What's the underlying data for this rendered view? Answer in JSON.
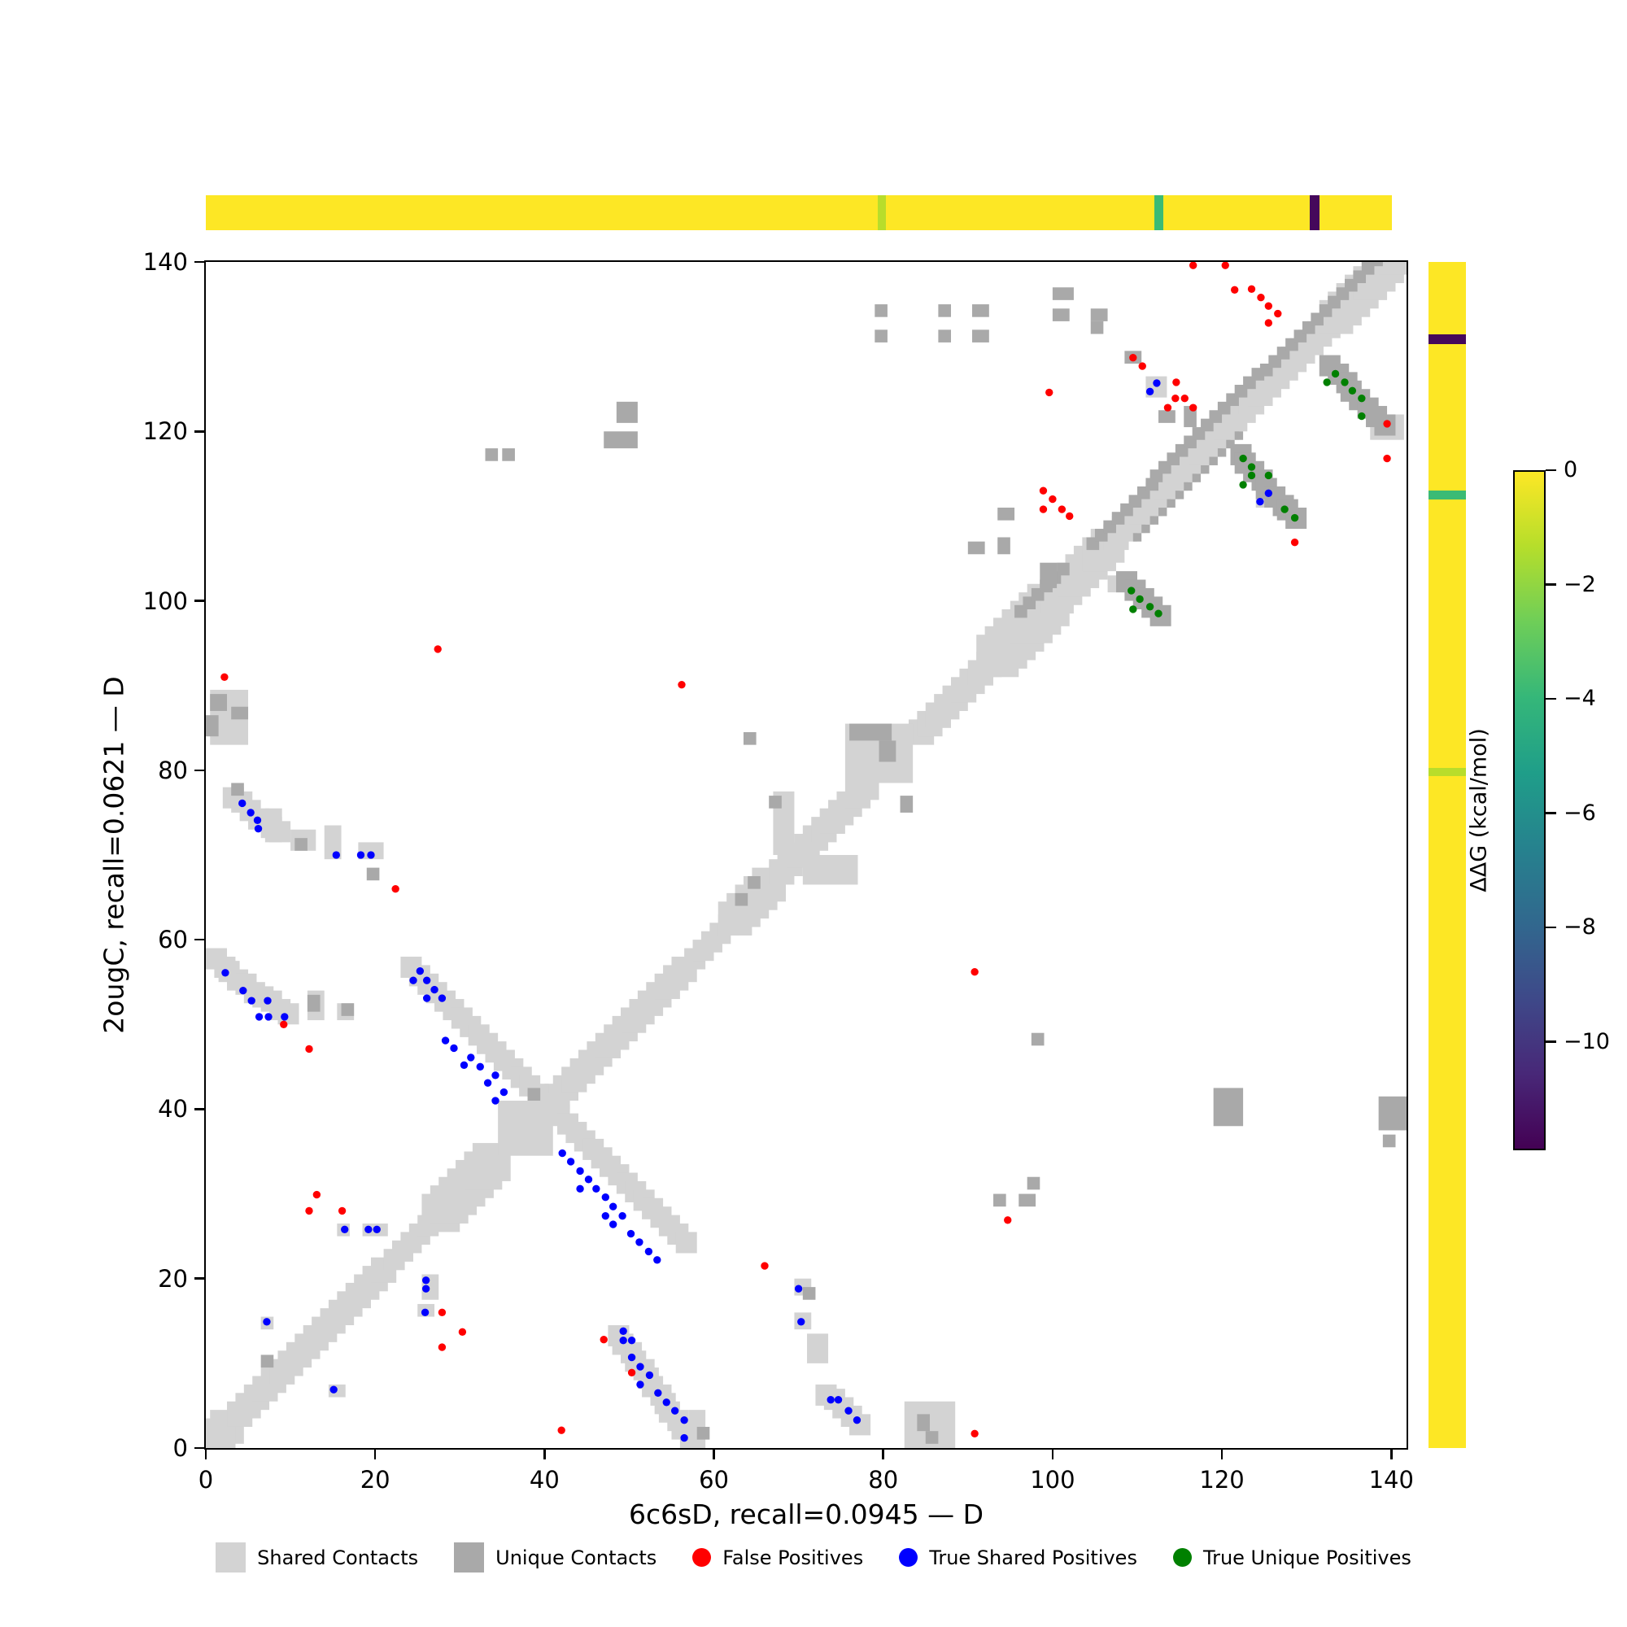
{
  "figure": {
    "background": "#ffffff"
  },
  "axes": {
    "xlabel": "6c6sD, recall=0.0945 — D",
    "ylabel": "2ougC, recall=0.0621 — D",
    "xtick_labels": [
      "0",
      "20",
      "40",
      "60",
      "80",
      "100",
      "120",
      "140"
    ],
    "xtick_values": [
      0,
      20,
      40,
      60,
      80,
      100,
      120,
      140
    ],
    "ytick_labels": [
      "0",
      "20",
      "40",
      "60",
      "80",
      "100",
      "120",
      "140"
    ],
    "ytick_values": [
      0,
      20,
      40,
      60,
      80,
      100,
      120,
      140
    ],
    "xlim": [
      0,
      141.8
    ],
    "ylim": [
      0,
      140
    ]
  },
  "legend": {
    "items": [
      {
        "label": "Shared Contacts",
        "shape": "square",
        "color": "#d3d3d3"
      },
      {
        "label": "Unique Contacts",
        "shape": "square",
        "color": "#a9a9a9"
      },
      {
        "label": "False Positives",
        "shape": "circle",
        "color": "#ff0000"
      },
      {
        "label": "True Shared Positives",
        "shape": "circle",
        "color": "#0000ff"
      },
      {
        "label": "True Unique Positives",
        "shape": "circle",
        "color": "#008000"
      }
    ]
  },
  "colorbar": {
    "label": "ΔΔG (kcal/mol)",
    "vmax": 0,
    "vmin": -11.9,
    "ticks": [
      {
        "label": "0",
        "value": 0
      },
      {
        "label": "−2",
        "value": -2
      },
      {
        "label": "−4",
        "value": -4
      },
      {
        "label": "−6",
        "value": -6
      },
      {
        "label": "−8",
        "value": -8
      },
      {
        "label": "−10",
        "value": -10
      }
    ],
    "gradient": [
      "#fde725",
      "#b5de2b",
      "#6ece58",
      "#35b779",
      "#1f9e89",
      "#26828e",
      "#31688e",
      "#3e4989",
      "#482878",
      "#440154"
    ]
  },
  "strips": {
    "base_color": "#fde725",
    "length": 140,
    "marks": [
      {
        "residue": 79.8,
        "width": 1.0,
        "color": "#b8dd2b",
        "ddg": -1.0
      },
      {
        "residue": 112.5,
        "width": 1.1,
        "color": "#3bbb75",
        "ddg": -4.0
      },
      {
        "residue": 130.9,
        "width": 1.2,
        "color": "#45085b",
        "ddg": -11.5
      }
    ]
  },
  "chart_data": {
    "type": "contact-map-comparison",
    "x_protein": {
      "id": "6c6sD",
      "recall": 0.0945,
      "chain": "D"
    },
    "y_protein": {
      "id": "2ougC",
      "recall": 0.0621,
      "chain": "D"
    },
    "cell_colors": {
      "shared": "#d3d3d3",
      "unique": "#a9a9a9"
    },
    "dot_colors": {
      "false_positive": "#ff0000",
      "true_shared": "#0000ff",
      "true_unique": "#008000"
    },
    "dot_radius": 0.45,
    "diagonal_runs": [
      [
        0,
        3.5,
        2.1
      ],
      [
        3.5,
        22,
        1.6
      ],
      [
        22,
        27,
        1.3
      ],
      [
        27,
        34,
        2.2
      ],
      [
        41,
        57,
        1.6
      ],
      [
        57,
        62,
        1.2
      ],
      [
        62,
        67.5,
        1.9
      ],
      [
        67.5,
        79,
        1.5
      ],
      [
        84,
        93,
        1.5
      ],
      [
        93,
        100,
        2.4
      ],
      [
        100,
        107,
        2.1
      ],
      [
        107,
        133,
        1.5
      ],
      [
        133,
        141.8,
        2.0
      ]
    ],
    "shared_segments": [
      [
        1.0,
        57.6,
        9.6,
        51.0,
        2.4
      ],
      [
        24.0,
        56.8,
        56.8,
        24.0,
        2.3
      ],
      [
        48.8,
        13.4,
        57.0,
        1.0,
        2.5
      ],
      [
        3.4,
        77.0,
        8.6,
        72.6,
        2.6
      ],
      [
        73.5,
        6.5,
        77.3,
        2.9,
        2.6
      ]
    ],
    "unique_segments": [
      [
        132.8,
        127.6,
        139.2,
        120.8,
        2.6
      ],
      [
        122.2,
        117.2,
        128.8,
        109.6,
        2.6
      ],
      [
        108.8,
        102.2,
        112.8,
        98.4,
        2.4
      ],
      [
        104.5,
        106.7,
        139.0,
        141.2,
        1.3
      ],
      [
        96.0,
        98.4,
        101.0,
        103.4,
        1.3
      ],
      [
        110.0,
        107.8,
        122.0,
        119.8,
        1.2
      ]
    ],
    "shared_blobs": [
      [
        0,
        0,
        3.6,
        2.6
      ],
      [
        34.5,
        34.5,
        6.7,
        6.7
      ],
      [
        75.6,
        78.5,
        8.2,
        7.0
      ],
      [
        0.5,
        83.2,
        4.6,
        6.3
      ],
      [
        82.6,
        0.2,
        5.8,
        5.7
      ],
      [
        66.8,
        69.8,
        2.6,
        7.4
      ],
      [
        70.3,
        66.3,
        6.3,
        3.5
      ],
      [
        14.2,
        69.6,
        1.9,
        4.0
      ],
      [
        17.8,
        69.3,
        3.1,
        1.8
      ],
      [
        10.2,
        70.4,
        3.1,
        2.7
      ],
      [
        6.9,
        71.5,
        2.1,
        4.0
      ],
      [
        69.3,
        18.1,
        1.8,
        1.8
      ],
      [
        69.5,
        14.2,
        1.9,
        1.8
      ],
      [
        15.6,
        25.2,
        1.7,
        1.7
      ],
      [
        18.5,
        25.2,
        2.8,
        1.7
      ],
      [
        25.4,
        17.7,
        1.8,
        3.0
      ],
      [
        25.2,
        15.4,
        1.8,
        1.7
      ],
      [
        6.4,
        14.2,
        1.7,
        1.7
      ],
      [
        14.3,
        6.2,
        1.8,
        1.7
      ],
      [
        57.2,
        0.1,
        2.0,
        4.3
      ],
      [
        12.0,
        50.4,
        2.2,
        3.4
      ],
      [
        15.5,
        50.7,
        2.2,
        2.2
      ],
      [
        106.6,
        100.9,
        1.8,
        1.8
      ],
      [
        124.2,
        110.8,
        2.7,
        2.7
      ],
      [
        137.4,
        118.9,
        3.9,
        3.2
      ],
      [
        111.1,
        124.1,
        2.3,
        2.5
      ],
      [
        70.8,
        10.2,
        2.5,
        3.3
      ]
    ],
    "unique_blobs": [
      [
        0.6,
        87.0,
        2.2,
        2.2
      ],
      [
        0.2,
        83.8,
        1.6,
        2.6
      ],
      [
        2.8,
        85.8,
        2.2,
        1.6
      ],
      [
        3.1,
        76.8,
        1.4,
        1.4
      ],
      [
        10.3,
        70.7,
        1.4,
        1.6
      ],
      [
        19.0,
        66.9,
        1.5,
        1.5
      ],
      [
        12.1,
        51.4,
        1.4,
        1.9
      ],
      [
        15.8,
        51.2,
        1.6,
        1.6
      ],
      [
        6.7,
        9.4,
        1.3,
        1.3
      ],
      [
        38.1,
        40.8,
        1.4,
        1.4
      ],
      [
        33.0,
        116.3,
        1.6,
        1.6
      ],
      [
        35.2,
        116.3,
        1.4,
        1.6
      ],
      [
        46.8,
        118.0,
        4.0,
        2.2
      ],
      [
        48.3,
        120.8,
        2.6,
        2.3
      ],
      [
        63.6,
        83.0,
        1.5,
        1.5
      ],
      [
        66.7,
        75.6,
        1.4,
        1.4
      ],
      [
        62.3,
        64.2,
        1.4,
        1.4
      ],
      [
        64.0,
        65.8,
        1.4,
        1.4
      ],
      [
        57.9,
        0.8,
        1.4,
        1.4
      ],
      [
        83.8,
        2.2,
        1.6,
        1.9
      ],
      [
        85.2,
        0.3,
        1.6,
        1.5
      ],
      [
        70.4,
        17.5,
        1.6,
        1.3
      ],
      [
        97.3,
        47.3,
        1.6,
        1.6
      ],
      [
        119.2,
        38.0,
        3.4,
        4.6
      ],
      [
        138.3,
        37.3,
        3.5,
        4.2
      ],
      [
        139.2,
        35.6,
        1.4,
        1.4
      ],
      [
        96.9,
        30.4,
        1.6,
        1.6
      ],
      [
        93.2,
        28.3,
        1.6,
        1.6
      ],
      [
        96.0,
        28.3,
        2.2,
        1.6
      ],
      [
        75.8,
        83.6,
        5.2,
        1.9
      ],
      [
        79.4,
        81.0,
        2.2,
        2.5
      ],
      [
        82.2,
        75.2,
        1.5,
        2.1
      ],
      [
        78.8,
        133.3,
        1.6,
        1.4
      ],
      [
        78.8,
        130.3,
        1.6,
        1.4
      ],
      [
        86.4,
        133.3,
        1.6,
        1.6
      ],
      [
        86.4,
        130.4,
        1.6,
        1.6
      ],
      [
        90.3,
        133.4,
        1.9,
        1.4
      ],
      [
        90.3,
        130.6,
        1.9,
        1.4
      ],
      [
        100.2,
        135.5,
        2.3,
        1.6
      ],
      [
        100.2,
        133.0,
        1.9,
        1.4
      ],
      [
        104.5,
        133.2,
        1.9,
        1.4
      ],
      [
        104.5,
        131.3,
        1.4,
        1.4
      ],
      [
        108.3,
        128.2,
        1.9,
        1.4
      ],
      [
        93.6,
        109.6,
        2.2,
        1.4
      ],
      [
        93.6,
        105.6,
        1.4,
        2.2
      ],
      [
        89.8,
        105.4,
        2.2,
        1.4
      ],
      [
        98.6,
        101.3,
        1.9,
        3.1
      ],
      [
        112.5,
        121.2,
        1.9,
        1.4
      ],
      [
        115.3,
        120.3,
        1.4,
        2.3
      ]
    ],
    "false_positives": [
      [
        2.2,
        91.0
      ],
      [
        9.2,
        50.0
      ],
      [
        12.2,
        47.1
      ],
      [
        13.1,
        29.9
      ],
      [
        12.2,
        28.0
      ],
      [
        16.1,
        28.0
      ],
      [
        22.4,
        66.0
      ],
      [
        27.4,
        94.3
      ],
      [
        27.9,
        16.0
      ],
      [
        27.9,
        11.9
      ],
      [
        30.3,
        13.7
      ],
      [
        42.0,
        2.1
      ],
      [
        47.0,
        12.8
      ],
      [
        50.3,
        8.9
      ],
      [
        56.2,
        90.1
      ],
      [
        66.0,
        21.5
      ],
      [
        90.8,
        56.2
      ],
      [
        90.8,
        1.7
      ],
      [
        94.7,
        26.9
      ],
      [
        99.6,
        124.6
      ],
      [
        98.9,
        113.0
      ],
      [
        100.0,
        112.0
      ],
      [
        98.9,
        110.8
      ],
      [
        101.1,
        110.8
      ],
      [
        102.0,
        110.0
      ],
      [
        109.5,
        128.7
      ],
      [
        110.6,
        127.7
      ],
      [
        116.6,
        139.6
      ],
      [
        120.4,
        139.6
      ],
      [
        121.5,
        136.7
      ],
      [
        123.5,
        136.8
      ],
      [
        124.6,
        135.8
      ],
      [
        125.5,
        134.8
      ],
      [
        126.6,
        133.9
      ],
      [
        125.5,
        132.8
      ],
      [
        114.6,
        125.8
      ],
      [
        114.5,
        123.9
      ],
      [
        115.6,
        123.9
      ],
      [
        113.6,
        122.8
      ],
      [
        116.6,
        122.8
      ],
      [
        128.6,
        106.9
      ],
      [
        139.5,
        120.9
      ],
      [
        139.5,
        116.8
      ]
    ],
    "true_shared_positives": [
      [
        2.3,
        56.1
      ],
      [
        4.4,
        54.0
      ],
      [
        5.4,
        52.8
      ],
      [
        7.3,
        52.8
      ],
      [
        6.3,
        50.9
      ],
      [
        7.4,
        50.9
      ],
      [
        9.3,
        50.9
      ],
      [
        4.3,
        76.1
      ],
      [
        5.3,
        75.0
      ],
      [
        6.1,
        74.1
      ],
      [
        6.2,
        73.1
      ],
      [
        15.4,
        70.0
      ],
      [
        18.3,
        70.0
      ],
      [
        19.5,
        70.0
      ],
      [
        7.2,
        14.9
      ],
      [
        15.1,
        6.9
      ],
      [
        16.4,
        25.8
      ],
      [
        19.2,
        25.8
      ],
      [
        20.2,
        25.8
      ],
      [
        26.0,
        19.8
      ],
      [
        26.0,
        18.8
      ],
      [
        25.9,
        16.0
      ],
      [
        25.3,
        56.3
      ],
      [
        24.5,
        55.2
      ],
      [
        26.1,
        55.2
      ],
      [
        27.0,
        54.1
      ],
      [
        26.1,
        53.1
      ],
      [
        27.9,
        53.1
      ],
      [
        28.3,
        48.1
      ],
      [
        29.3,
        47.2
      ],
      [
        31.3,
        46.1
      ],
      [
        30.5,
        45.2
      ],
      [
        32.4,
        45.0
      ],
      [
        34.2,
        44.0
      ],
      [
        33.3,
        43.1
      ],
      [
        35.2,
        42.0
      ],
      [
        34.2,
        41.0
      ],
      [
        42.1,
        34.8
      ],
      [
        43.1,
        33.8
      ],
      [
        44.2,
        32.7
      ],
      [
        45.2,
        31.7
      ],
      [
        44.2,
        30.6
      ],
      [
        46.1,
        30.6
      ],
      [
        47.2,
        29.6
      ],
      [
        48.1,
        28.5
      ],
      [
        47.2,
        27.4
      ],
      [
        49.2,
        27.4
      ],
      [
        48.1,
        26.4
      ],
      [
        50.2,
        25.3
      ],
      [
        51.2,
        24.3
      ],
      [
        52.3,
        23.2
      ],
      [
        53.3,
        22.2
      ],
      [
        49.3,
        13.8
      ],
      [
        49.3,
        12.7
      ],
      [
        50.3,
        12.7
      ],
      [
        50.3,
        10.7
      ],
      [
        51.3,
        9.6
      ],
      [
        52.4,
        8.6
      ],
      [
        51.3,
        7.5
      ],
      [
        53.4,
        6.5
      ],
      [
        54.4,
        5.4
      ],
      [
        55.4,
        4.4
      ],
      [
        56.5,
        3.3
      ],
      [
        56.5,
        1.2
      ],
      [
        70.0,
        18.8
      ],
      [
        70.3,
        14.9
      ],
      [
        73.8,
        5.7
      ],
      [
        74.7,
        5.7
      ],
      [
        75.9,
        4.4
      ],
      [
        76.9,
        3.3
      ],
      [
        111.5,
        124.7
      ],
      [
        112.3,
        125.7
      ],
      [
        124.5,
        111.7
      ],
      [
        125.5,
        112.7
      ]
    ],
    "true_unique_positives": [
      [
        109.3,
        101.2
      ],
      [
        110.3,
        100.2
      ],
      [
        111.5,
        99.3
      ],
      [
        109.5,
        99.0
      ],
      [
        112.5,
        98.5
      ],
      [
        122.5,
        116.8
      ],
      [
        123.5,
        115.8
      ],
      [
        123.5,
        114.8
      ],
      [
        125.5,
        114.8
      ],
      [
        122.5,
        113.7
      ],
      [
        127.4,
        110.8
      ],
      [
        128.6,
        109.8
      ],
      [
        133.4,
        126.8
      ],
      [
        132.4,
        125.8
      ],
      [
        134.5,
        125.8
      ],
      [
        135.4,
        124.8
      ],
      [
        136.5,
        123.9
      ],
      [
        136.5,
        121.8
      ]
    ]
  }
}
